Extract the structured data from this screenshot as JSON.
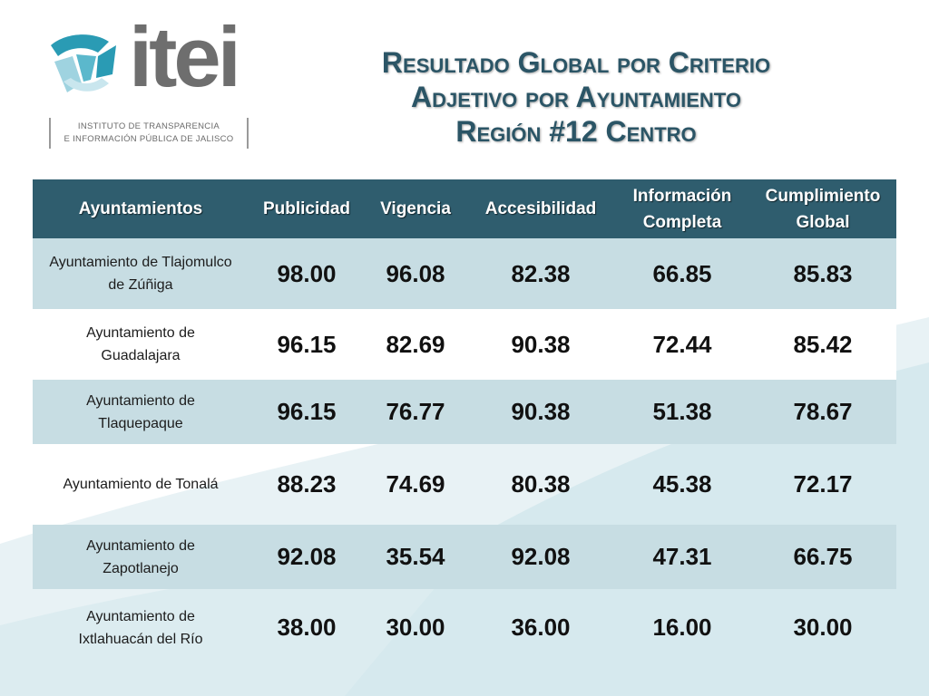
{
  "logo": {
    "word": "itei",
    "subtitle_line1": "INSTITUTO DE TRANSPARENCIA",
    "subtitle_line2": "E INFORMACIÓN PÚBLICA DE JALISCO"
  },
  "title": {
    "line1": "Resultado Global por Criterio",
    "line2": "Adjetivo por Ayuntamiento",
    "line3": "Región #12 Centro"
  },
  "table": {
    "headers": {
      "col0": "Ayuntamientos",
      "col1": "Publicidad",
      "col2": "Vigencia",
      "col3": "Accesibilidad",
      "col4_line1": "Información",
      "col4_line2": "Completa",
      "col5_line1": "Cumplimiento",
      "col5_line2": "Global"
    },
    "rows": [
      {
        "name_line1": "Ayuntamiento de Tlajomulco",
        "name_line2": "de Zúñiga",
        "publicidad": "98.00",
        "vigencia": "96.08",
        "accesibilidad": "82.38",
        "informacion": "66.85",
        "cumplimiento": "85.83"
      },
      {
        "name_line1": "Ayuntamiento de",
        "name_line2": "Guadalajara",
        "publicidad": "96.15",
        "vigencia": "82.69",
        "accesibilidad": "90.38",
        "informacion": "72.44",
        "cumplimiento": "85.42"
      },
      {
        "name_line1": "Ayuntamiento de",
        "name_line2": "Tlaquepaque",
        "publicidad": "96.15",
        "vigencia": "76.77",
        "accesibilidad": "90.38",
        "informacion": "51.38",
        "cumplimiento": "78.67"
      },
      {
        "name_line1": "Ayuntamiento de Tonalá",
        "name_line2": "",
        "publicidad": "88.23",
        "vigencia": "74.69",
        "accesibilidad": "80.38",
        "informacion": "45.38",
        "cumplimiento": "72.17"
      },
      {
        "name_line1": "Ayuntamiento de",
        "name_line2": "Zapotlanejo",
        "publicidad": "92.08",
        "vigencia": "35.54",
        "accesibilidad": "92.08",
        "informacion": "47.31",
        "cumplimiento": "66.75"
      },
      {
        "name_line1": "Ayuntamiento de",
        "name_line2": "Ixtlahuacán del Río",
        "publicidad": "38.00",
        "vigencia": "30.00",
        "accesibilidad": "36.00",
        "informacion": "16.00",
        "cumplimiento": "30.00"
      }
    ]
  },
  "colors": {
    "header_bg": "#2f5d6e",
    "title": "#2b5566",
    "row_band": "#c7dde3",
    "logo_teal": "#2a9bb4",
    "logo_grey": "#6e6e6e"
  }
}
